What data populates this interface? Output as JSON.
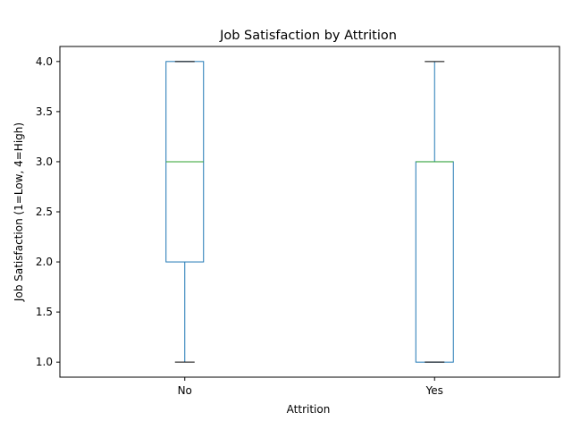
{
  "chart_data": {
    "type": "box",
    "title": "Job Satisfaction by Attrition",
    "xlabel": "Attrition",
    "ylabel": "Job Satisfaction (1=Low, 4=High)",
    "categories": [
      "No",
      "Yes"
    ],
    "boxes": [
      {
        "category": "No",
        "whisker_low": 1.0,
        "q1": 2.0,
        "median": 3.0,
        "q3": 4.0,
        "whisker_high": 4.0
      },
      {
        "category": "Yes",
        "whisker_low": 1.0,
        "q1": 1.0,
        "median": 3.0,
        "q3": 3.0,
        "whisker_high": 4.0
      }
    ],
    "yticks": [
      "1.0",
      "1.5",
      "2.0",
      "2.5",
      "3.0",
      "3.5",
      "4.0"
    ],
    "ylim": [
      0.85,
      4.15
    ],
    "grid": false,
    "colors": {
      "box": "#1f77b4",
      "median": "#2ca02c",
      "cap": "#000000"
    }
  }
}
